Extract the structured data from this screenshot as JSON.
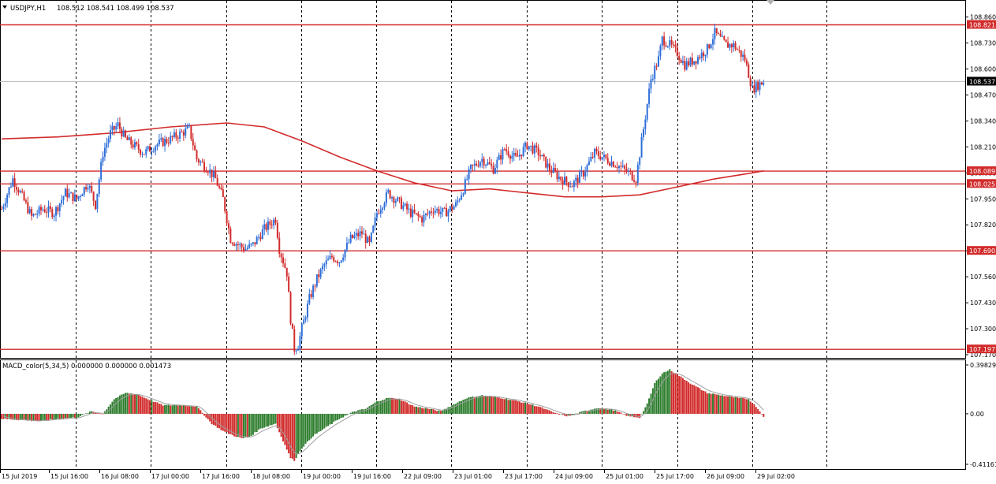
{
  "header": {
    "symbol": "USDJPY,H1",
    "ohlc": "108.512 108.541 108.499 108.537",
    "indicator": "MACD_color(5,34,5) 0.000000 0.000000 0.001473"
  },
  "colors": {
    "bull": "#2f6fd8",
    "bear": "#d22b2b",
    "level": "#d22b2b",
    "ma": "#d22b2b",
    "macd_pos": "#2e7d2e",
    "macd_neg": "#d22b2b",
    "signal": "#a0a0a0",
    "grid": "#000000"
  },
  "chart_data": [
    {
      "type": "candlestick",
      "title": "USDJPY,H1",
      "ylim": [
        107.17,
        108.89
      ],
      "y_ticks": [
        "108.860",
        "108.730",
        "108.600",
        "108.470",
        "108.340",
        "108.210",
        "108.080",
        "107.950",
        "107.820",
        "107.690",
        "107.560",
        "107.430",
        "107.300",
        "107.170"
      ],
      "x_ticks": [
        "15 Jul 2019",
        "15 Jul 16:00",
        "16 Jul 08:00",
        "17 Jul 00:00",
        "17 Jul 16:00",
        "18 Jul 08:00",
        "19 Jul 00:00",
        "19 Jul 16:00",
        "22 Jul 09:00",
        "23 Jul 01:00",
        "23 Jul 17:00",
        "24 Jul 09:00",
        "25 Jul 01:00",
        "25 Jul 17:00",
        "26 Jul 09:00",
        "29 Jul 02:00"
      ],
      "levels": [
        {
          "value": 108.821,
          "label": "108.821"
        },
        {
          "value": 108.089,
          "label": "108.089"
        },
        {
          "value": 108.025,
          "label": "108.025"
        },
        {
          "value": 107.69,
          "label": "107.690"
        },
        {
          "value": 107.197,
          "label": "107.197"
        }
      ],
      "current_price": {
        "value": 108.537,
        "label": "108.537"
      },
      "ma_curve": [
        [
          0,
          108.25
        ],
        [
          30,
          108.26
        ],
        [
          60,
          108.28
        ],
        [
          90,
          108.31
        ],
        [
          120,
          108.33
        ],
        [
          140,
          108.31
        ],
        [
          160,
          108.24
        ],
        [
          180,
          108.16
        ],
        [
          200,
          108.09
        ],
        [
          220,
          108.03
        ],
        [
          240,
          107.99
        ],
        [
          260,
          108.0
        ],
        [
          280,
          107.98
        ],
        [
          300,
          107.96
        ],
        [
          320,
          107.96
        ],
        [
          340,
          107.97
        ],
        [
          360,
          108.01
        ],
        [
          380,
          108.05
        ],
        [
          400,
          108.08
        ],
        [
          406,
          108.09
        ]
      ],
      "ohlc_anchors": [
        [
          0,
          107.9
        ],
        [
          6,
          108.05
        ],
        [
          10,
          107.98
        ],
        [
          16,
          107.86
        ],
        [
          22,
          107.9
        ],
        [
          28,
          107.88
        ],
        [
          34,
          107.98
        ],
        [
          40,
          107.95
        ],
        [
          46,
          108.03
        ],
        [
          50,
          107.92
        ],
        [
          54,
          108.18
        ],
        [
          58,
          108.28
        ],
        [
          62,
          108.32
        ],
        [
          66,
          108.25
        ],
        [
          70,
          108.22
        ],
        [
          76,
          108.18
        ],
        [
          82,
          108.22
        ],
        [
          90,
          108.25
        ],
        [
          100,
          108.3
        ],
        [
          104,
          108.15
        ],
        [
          110,
          108.1
        ],
        [
          114,
          108.05
        ],
        [
          118,
          107.95
        ],
        [
          122,
          107.75
        ],
        [
          126,
          107.72
        ],
        [
          130,
          107.7
        ],
        [
          134,
          107.72
        ],
        [
          140,
          107.8
        ],
        [
          146,
          107.85
        ],
        [
          148,
          107.7
        ],
        [
          152,
          107.58
        ],
        [
          154,
          107.35
        ],
        [
          156,
          107.2
        ],
        [
          158,
          107.22
        ],
        [
          160,
          107.3
        ],
        [
          164,
          107.45
        ],
        [
          168,
          107.55
        ],
        [
          172,
          107.62
        ],
        [
          176,
          107.66
        ],
        [
          180,
          107.64
        ],
        [
          186,
          107.75
        ],
        [
          192,
          107.78
        ],
        [
          196,
          107.72
        ],
        [
          200,
          107.88
        ],
        [
          206,
          107.98
        ],
        [
          212,
          107.93
        ],
        [
          218,
          107.88
        ],
        [
          224,
          107.85
        ],
        [
          230,
          107.9
        ],
        [
          236,
          107.88
        ],
        [
          242,
          107.92
        ],
        [
          246,
          108.0
        ],
        [
          250,
          108.1
        ],
        [
          256,
          108.15
        ],
        [
          262,
          108.1
        ],
        [
          268,
          108.2
        ],
        [
          274,
          108.15
        ],
        [
          280,
          108.22
        ],
        [
          286,
          108.18
        ],
        [
          292,
          108.1
        ],
        [
          298,
          108.05
        ],
        [
          304,
          108.02
        ],
        [
          310,
          108.08
        ],
        [
          316,
          108.18
        ],
        [
          322,
          108.15
        ],
        [
          328,
          108.12
        ],
        [
          334,
          108.08
        ],
        [
          338,
          108.05
        ],
        [
          342,
          108.3
        ],
        [
          346,
          108.55
        ],
        [
          350,
          108.65
        ],
        [
          352,
          108.75
        ],
        [
          356,
          108.72
        ],
        [
          360,
          108.68
        ],
        [
          364,
          108.62
        ],
        [
          370,
          108.65
        ],
        [
          376,
          108.7
        ],
        [
          380,
          108.78
        ],
        [
          386,
          108.72
        ],
        [
          390,
          108.72
        ],
        [
          396,
          108.65
        ],
        [
          400,
          108.5
        ],
        [
          403,
          108.52
        ],
        [
          406,
          108.537
        ]
      ],
      "n_bars": 407
    },
    {
      "type": "bar",
      "title": "MACD_color(5,34,5)",
      "ylim": [
        -0.41161,
        0.39829
      ],
      "y_ticks": [
        "0.39829",
        "0.00",
        "-0.41161"
      ],
      "anchors": [
        [
          0,
          -0.04
        ],
        [
          10,
          -0.05
        ],
        [
          20,
          -0.06
        ],
        [
          30,
          -0.04
        ],
        [
          40,
          -0.03
        ],
        [
          48,
          0.02
        ],
        [
          54,
          0.0
        ],
        [
          60,
          0.12
        ],
        [
          66,
          0.17
        ],
        [
          72,
          0.16
        ],
        [
          78,
          0.12
        ],
        [
          86,
          0.07
        ],
        [
          96,
          0.07
        ],
        [
          104,
          0.06
        ],
        [
          112,
          -0.08
        ],
        [
          118,
          -0.14
        ],
        [
          124,
          -0.18
        ],
        [
          128,
          -0.2
        ],
        [
          132,
          -0.19
        ],
        [
          138,
          -0.12
        ],
        [
          146,
          -0.08
        ],
        [
          150,
          -0.22
        ],
        [
          154,
          -0.36
        ],
        [
          156,
          -0.38
        ],
        [
          160,
          -0.28
        ],
        [
          166,
          -0.18
        ],
        [
          172,
          -0.12
        ],
        [
          180,
          -0.04
        ],
        [
          188,
          0.02
        ],
        [
          194,
          0.04
        ],
        [
          200,
          0.1
        ],
        [
          206,
          0.13
        ],
        [
          212,
          0.12
        ],
        [
          220,
          0.06
        ],
        [
          228,
          0.04
        ],
        [
          234,
          0.02
        ],
        [
          240,
          0.07
        ],
        [
          248,
          0.13
        ],
        [
          256,
          0.15
        ],
        [
          266,
          0.13
        ],
        [
          276,
          0.1
        ],
        [
          286,
          0.06
        ],
        [
          296,
          0.0
        ],
        [
          302,
          -0.02
        ],
        [
          310,
          0.02
        ],
        [
          318,
          0.05
        ],
        [
          326,
          0.03
        ],
        [
          334,
          -0.02
        ],
        [
          340,
          -0.03
        ],
        [
          344,
          0.08
        ],
        [
          348,
          0.25
        ],
        [
          352,
          0.33
        ],
        [
          356,
          0.36
        ],
        [
          360,
          0.32
        ],
        [
          368,
          0.24
        ],
        [
          376,
          0.17
        ],
        [
          384,
          0.15
        ],
        [
          392,
          0.13
        ],
        [
          398,
          0.12
        ],
        [
          402,
          0.06
        ],
        [
          406,
          -0.02
        ]
      ]
    }
  ]
}
